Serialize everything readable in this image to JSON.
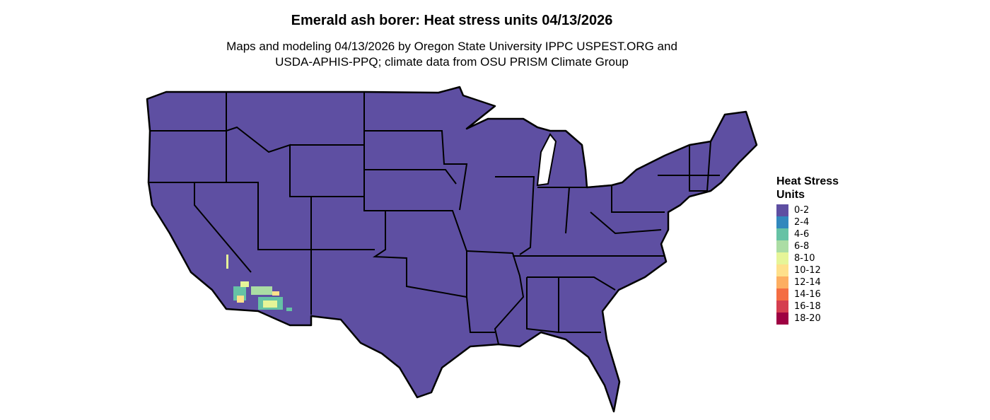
{
  "title": "Emerald ash borer: Heat stress units 04/13/2026",
  "subtitle_line1": "Maps and modeling 04/13/2026 by Oregon State University IPPC USPEST.ORG and",
  "subtitle_line2": "USDA-APHIS-PPQ; climate data from OSU PRISM Climate Group",
  "legend": {
    "title_line1": "Heat Stress",
    "title_line2": "Units",
    "items": [
      {
        "label": "0-2",
        "color": "#5E4FA2"
      },
      {
        "label": "2-4",
        "color": "#3288BD"
      },
      {
        "label": "4-6",
        "color": "#66C2A5"
      },
      {
        "label": "6-8",
        "color": "#ABDDA4"
      },
      {
        "label": "8-10",
        "color": "#E6F598"
      },
      {
        "label": "10-12",
        "color": "#FEE08B"
      },
      {
        "label": "12-14",
        "color": "#FDAE61"
      },
      {
        "label": "14-16",
        "color": "#F46D43"
      },
      {
        "label": "16-18",
        "color": "#D53E4F"
      },
      {
        "label": "18-20",
        "color": "#9E0142"
      }
    ]
  },
  "map": {
    "region": "Contiguous United States",
    "dominant_class": "0-2",
    "hotspot_region": "southern Arizona / southeastern California"
  }
}
